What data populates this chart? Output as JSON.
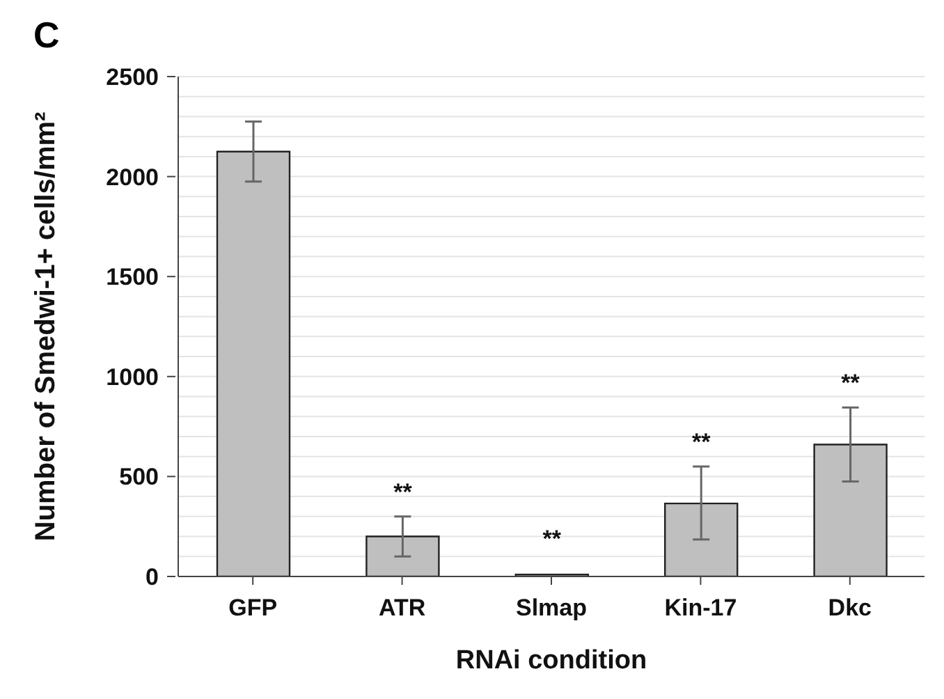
{
  "chart_data": {
    "type": "bar",
    "title": "C",
    "xlabel": "RNAi condition",
    "ylabel": "Number of Smedwi-1+ cells/mm²",
    "categories": [
      "GFP",
      "ATR",
      "Slmap",
      "Kin-17",
      "Dkc"
    ],
    "values": [
      2125,
      200,
      10,
      365,
      660
    ],
    "errors": [
      [
        1975,
        2275
      ],
      [
        100,
        300
      ],
      null,
      [
        185,
        550
      ],
      [
        475,
        845
      ]
    ],
    "color": "#bfbfbf",
    "ylim": [
      0,
      2500
    ],
    "yticks": [
      0,
      {
        "value": 100,
        "label": null
      },
      {
        "value": 200,
        "label": null
      },
      {
        "value": 300,
        "label": null
      },
      {
        "value": 400,
        "label": null
      },
      500,
      {
        "value": 600,
        "label": null
      },
      {
        "value": 700,
        "label": null
      },
      {
        "value": 800,
        "label": null
      },
      {
        "value": 900,
        "label": null
      },
      1000,
      {
        "value": 1100,
        "label": null
      },
      {
        "value": 1200,
        "label": null
      },
      {
        "value": 1300,
        "label": null
      },
      {
        "value": 1400,
        "label": null
      },
      1500,
      {
        "value": 1600,
        "label": null
      },
      {
        "value": 1700,
        "label": null
      },
      {
        "value": 1800,
        "label": null
      },
      {
        "value": 1900,
        "label": null
      },
      2000,
      {
        "value": 2100,
        "label": null
      },
      {
        "value": 2200,
        "label": null
      },
      {
        "value": 2300,
        "label": null
      },
      {
        "value": 2400,
        "label": null
      },
      2500
    ],
    "grid": "y",
    "value_labels": [
      null,
      "**",
      "**",
      "**",
      "**"
    ]
  }
}
